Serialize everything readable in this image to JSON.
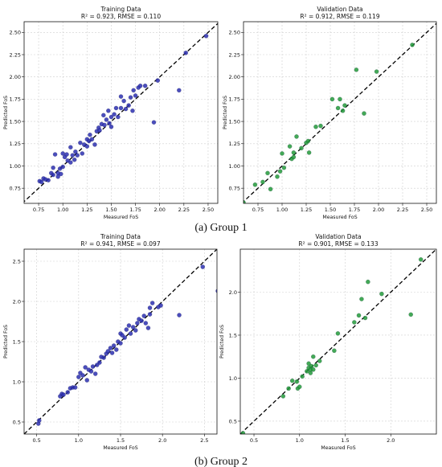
{
  "captions": [
    "(a) Group 1",
    "(b) Group 2"
  ],
  "colors": {
    "training": "#2b2fb0",
    "validation": "#229a3a",
    "grid": "#cfcfcf",
    "diagonal": "#000000"
  },
  "chart_data": [
    {
      "type": "scatter",
      "group": "(a) Group 1",
      "title_line1": "Training Data",
      "title_line2": "R² = 0.923, RMSE = 0.110",
      "xlabel": "Measured FoS",
      "ylabel": "Predicted FoS",
      "xlim": [
        0.6,
        2.6
      ],
      "ylim": [
        0.58,
        2.62
      ],
      "xticks": [
        0.75,
        1.0,
        1.25,
        1.5,
        1.75,
        2.0,
        2.25,
        2.5
      ],
      "yticks": [
        0.75,
        1.0,
        1.25,
        1.5,
        1.75,
        2.0,
        2.25,
        2.5
      ],
      "grid": true,
      "reference_line": "y = x",
      "points": [
        [
          0.76,
          0.83
        ],
        [
          0.78,
          0.82
        ],
        [
          0.8,
          0.86
        ],
        [
          0.82,
          0.85
        ],
        [
          0.85,
          0.84
        ],
        [
          0.88,
          0.92
        ],
        [
          0.9,
          0.98
        ],
        [
          0.9,
          0.9
        ],
        [
          0.92,
          1.13
        ],
        [
          0.95,
          0.88
        ],
        [
          0.95,
          0.92
        ],
        [
          0.97,
          0.97
        ],
        [
          0.98,
          0.91
        ],
        [
          1.0,
          0.99
        ],
        [
          1.0,
          1.14
        ],
        [
          1.02,
          1.1
        ],
        [
          1.04,
          1.13
        ],
        [
          1.05,
          1.06
        ],
        [
          1.08,
          1.04
        ],
        [
          1.08,
          1.21
        ],
        [
          1.1,
          1.12
        ],
        [
          1.12,
          1.07
        ],
        [
          1.13,
          1.16
        ],
        [
          1.15,
          1.12
        ],
        [
          1.18,
          1.26
        ],
        [
          1.2,
          1.14
        ],
        [
          1.22,
          1.24
        ],
        [
          1.25,
          1.3
        ],
        [
          1.25,
          1.22
        ],
        [
          1.27,
          1.28
        ],
        [
          1.28,
          1.35
        ],
        [
          1.3,
          1.3
        ],
        [
          1.33,
          1.24
        ],
        [
          1.35,
          1.39
        ],
        [
          1.37,
          1.43
        ],
        [
          1.38,
          1.4
        ],
        [
          1.4,
          1.47
        ],
        [
          1.42,
          1.57
        ],
        [
          1.43,
          1.46
        ],
        [
          1.45,
          1.52
        ],
        [
          1.47,
          1.62
        ],
        [
          1.48,
          1.48
        ],
        [
          1.5,
          1.55
        ],
        [
          1.5,
          1.44
        ],
        [
          1.53,
          1.58
        ],
        [
          1.55,
          1.65
        ],
        [
          1.57,
          1.55
        ],
        [
          1.6,
          1.65
        ],
        [
          1.6,
          1.78
        ],
        [
          1.63,
          1.73
        ],
        [
          1.65,
          1.64
        ],
        [
          1.68,
          1.68
        ],
        [
          1.7,
          1.77
        ],
        [
          1.72,
          1.62
        ],
        [
          1.73,
          1.85
        ],
        [
          1.75,
          1.79
        ],
        [
          1.78,
          1.88
        ],
        [
          1.8,
          1.9
        ],
        [
          1.85,
          1.9
        ],
        [
          1.94,
          1.49
        ],
        [
          1.98,
          1.96
        ],
        [
          2.2,
          1.85
        ],
        [
          2.27,
          2.27
        ],
        [
          2.48,
          2.46
        ],
        [
          2.62,
          2.22
        ]
      ]
    },
    {
      "type": "scatter",
      "group": "(a) Group 1",
      "title_line1": "Validation Data",
      "title_line2": "R² = 0.912, RMSE = 0.119",
      "xlabel": "Measured FoS",
      "ylabel": "Predicted FoS",
      "xlim": [
        0.6,
        2.6
      ],
      "ylim": [
        0.58,
        2.62
      ],
      "xticks": [
        0.75,
        1.0,
        1.25,
        1.5,
        1.75,
        2.0,
        2.25,
        2.5
      ],
      "yticks": [
        0.75,
        1.0,
        1.25,
        1.5,
        1.75,
        2.0,
        2.25,
        2.5
      ],
      "grid": true,
      "reference_line": "y = x",
      "points": [
        [
          0.6,
          0.59
        ],
        [
          0.72,
          0.79
        ],
        [
          0.8,
          0.82
        ],
        [
          0.85,
          0.92
        ],
        [
          0.88,
          0.74
        ],
        [
          0.95,
          0.88
        ],
        [
          0.98,
          0.94
        ],
        [
          1.0,
          1.14
        ],
        [
          1.02,
          0.98
        ],
        [
          1.08,
          1.22
        ],
        [
          1.1,
          1.08
        ],
        [
          1.12,
          1.1
        ],
        [
          1.12,
          1.15
        ],
        [
          1.15,
          1.33
        ],
        [
          1.2,
          1.2
        ],
        [
          1.25,
          1.26
        ],
        [
          1.27,
          1.28
        ],
        [
          1.28,
          1.15
        ],
        [
          1.35,
          1.44
        ],
        [
          1.4,
          1.45
        ],
        [
          1.52,
          1.75
        ],
        [
          1.58,
          1.65
        ],
        [
          1.6,
          1.75
        ],
        [
          1.63,
          1.62
        ],
        [
          1.65,
          1.68
        ],
        [
          1.77,
          2.08
        ],
        [
          1.85,
          1.59
        ],
        [
          1.98,
          2.06
        ],
        [
          2.35,
          2.36
        ]
      ]
    },
    {
      "type": "scatter",
      "group": "(b) Group 2",
      "title_line1": "Training Data",
      "title_line2": "R² = 0.941, RMSE = 0.097",
      "xlabel": "Measured FoS",
      "ylabel": "Predicted FoS",
      "xlim": [
        0.35,
        2.65
      ],
      "ylim": [
        0.35,
        2.65
      ],
      "xticks": [
        0.5,
        1.0,
        1.5,
        2.0,
        2.5
      ],
      "yticks": [
        0.5,
        1.0,
        1.5,
        2.0,
        2.5
      ],
      "grid": true,
      "reference_line": "y = x",
      "points": [
        [
          0.52,
          0.48
        ],
        [
          0.53,
          0.52
        ],
        [
          0.78,
          0.82
        ],
        [
          0.8,
          0.85
        ],
        [
          0.82,
          0.84
        ],
        [
          0.87,
          0.87
        ],
        [
          0.9,
          0.92
        ],
        [
          0.93,
          0.93
        ],
        [
          0.96,
          0.93
        ],
        [
          1.0,
          1.06
        ],
        [
          1.02,
          1.11
        ],
        [
          1.05,
          1.08
        ],
        [
          1.08,
          1.18
        ],
        [
          1.1,
          1.02
        ],
        [
          1.12,
          1.15
        ],
        [
          1.15,
          1.13
        ],
        [
          1.17,
          1.19
        ],
        [
          1.2,
          1.1
        ],
        [
          1.22,
          1.21
        ],
        [
          1.25,
          1.24
        ],
        [
          1.27,
          1.31
        ],
        [
          1.3,
          1.3
        ],
        [
          1.33,
          1.35
        ],
        [
          1.35,
          1.38
        ],
        [
          1.38,
          1.42
        ],
        [
          1.4,
          1.36
        ],
        [
          1.42,
          1.45
        ],
        [
          1.45,
          1.4
        ],
        [
          1.47,
          1.5
        ],
        [
          1.5,
          1.48
        ],
        [
          1.5,
          1.6
        ],
        [
          1.52,
          1.58
        ],
        [
          1.55,
          1.55
        ],
        [
          1.57,
          1.65
        ],
        [
          1.6,
          1.7
        ],
        [
          1.62,
          1.6
        ],
        [
          1.65,
          1.68
        ],
        [
          1.68,
          1.64
        ],
        [
          1.7,
          1.73
        ],
        [
          1.72,
          1.78
        ],
        [
          1.75,
          1.76
        ],
        [
          1.78,
          1.82
        ],
        [
          1.8,
          1.73
        ],
        [
          1.83,
          1.67
        ],
        [
          1.85,
          1.84
        ],
        [
          1.85,
          1.92
        ],
        [
          1.88,
          1.98
        ],
        [
          1.95,
          1.93
        ],
        [
          1.98,
          1.95
        ],
        [
          2.2,
          1.83
        ],
        [
          2.48,
          2.43
        ],
        [
          2.66,
          2.13
        ]
      ]
    },
    {
      "type": "scatter",
      "group": "(b) Group 2",
      "title_line1": "Validation Data",
      "title_line2": "R² = 0.901, RMSE = 0.133",
      "xlabel": "Measured FoS",
      "ylabel": "Predicted FoS",
      "xlim": [
        0.35,
        2.5
      ],
      "ylim": [
        0.35,
        2.5
      ],
      "xticks": [
        0.5,
        1.0,
        1.5,
        2.0
      ],
      "yticks": [
        0.5,
        1.0,
        1.5,
        2.0
      ],
      "grid": true,
      "reference_line": "y = x",
      "points": [
        [
          0.38,
          0.36
        ],
        [
          0.82,
          0.79
        ],
        [
          0.88,
          0.88
        ],
        [
          0.92,
          0.97
        ],
        [
          0.97,
          0.96
        ],
        [
          0.98,
          0.88
        ],
        [
          1.0,
          0.9
        ],
        [
          1.03,
          1.02
        ],
        [
          1.08,
          1.08
        ],
        [
          1.1,
          1.12
        ],
        [
          1.1,
          1.17
        ],
        [
          1.12,
          1.06
        ],
        [
          1.12,
          1.1
        ],
        [
          1.13,
          1.14
        ],
        [
          1.15,
          1.1
        ],
        [
          1.15,
          1.25
        ],
        [
          1.18,
          1.15
        ],
        [
          1.22,
          1.2
        ],
        [
          1.38,
          1.32
        ],
        [
          1.42,
          1.52
        ],
        [
          1.6,
          1.65
        ],
        [
          1.65,
          1.73
        ],
        [
          1.68,
          1.92
        ],
        [
          1.72,
          1.7
        ],
        [
          1.75,
          2.12
        ],
        [
          1.9,
          1.98
        ],
        [
          2.22,
          1.74
        ],
        [
          2.33,
          2.38
        ]
      ]
    }
  ]
}
